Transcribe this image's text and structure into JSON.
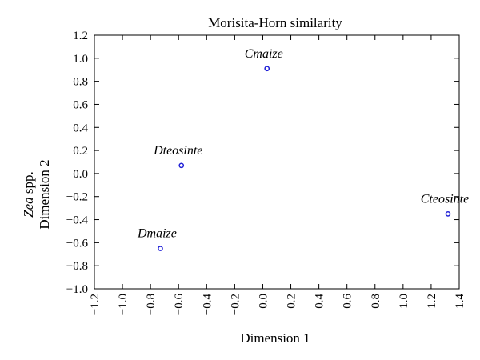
{
  "chart_data": {
    "type": "scatter",
    "title": "Morisita-Horn similarity",
    "xlabel": "Dimension 1",
    "ylabel": {
      "italic": "Zea",
      "rest": " spp.",
      "line2": "Dimension 2"
    },
    "xlim": [
      -1.2,
      1.4
    ],
    "ylim": [
      -1.0,
      1.2
    ],
    "xticks": [
      -1.2,
      -1.0,
      -0.8,
      -0.6,
      -0.4,
      -0.2,
      0.0,
      0.2,
      0.4,
      0.6,
      0.8,
      1.0,
      1.2,
      1.4
    ],
    "xtick_labels": [
      "−1.2",
      "−1.0",
      "−0.8",
      "−0.6",
      "−0.4",
      "−0.2",
      "0.0",
      "0.2",
      "0.4",
      "0.6",
      "0.8",
      "1.0",
      "1.2",
      "1.4"
    ],
    "yticks": [
      -1.0,
      -0.8,
      -0.6,
      -0.4,
      -0.2,
      0.0,
      0.2,
      0.4,
      0.6,
      0.8,
      1.0,
      1.2
    ],
    "ytick_labels": [
      "−1.0",
      "−0.8",
      "−0.6",
      "−0.4",
      "−0.2",
      "0.0",
      "0.2",
      "0.4",
      "0.6",
      "0.8",
      "1.0",
      "1.2"
    ],
    "grid": false,
    "marker_color": "#1f1fd6",
    "points": [
      {
        "label": "Cmaize",
        "x": 0.03,
        "y": 0.91
      },
      {
        "label": "Dteosinte",
        "x": -0.58,
        "y": 0.07
      },
      {
        "label": "Cteosinte",
        "x": 1.32,
        "y": -0.35
      },
      {
        "label": "Dmaize",
        "x": -0.73,
        "y": -0.65
      }
    ]
  }
}
